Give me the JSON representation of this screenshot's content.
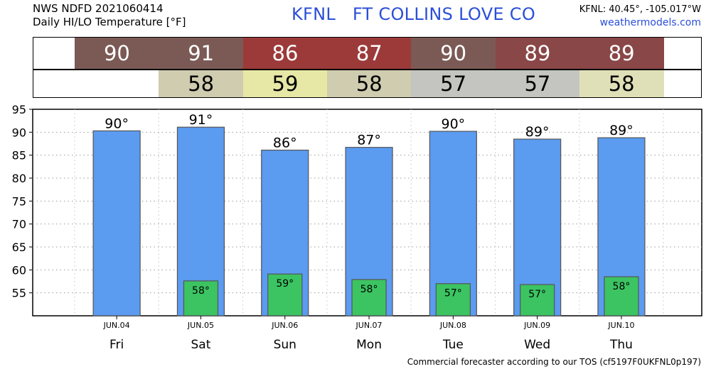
{
  "header": {
    "source_line": "NWS NDFD 2021060414",
    "product_line": "Daily HI/LO Temperature [°F]",
    "station_title": "KFNL   FT COLLINS LOVE CO",
    "coords": "KFNL: 40.45°, -105.017°W",
    "site": "weathermodels.com"
  },
  "strips": {
    "hi": [
      {
        "value": "90",
        "color": "#7b5a55"
      },
      {
        "value": "91",
        "color": "#7b5a55"
      },
      {
        "value": "86",
        "color": "#9c3a3a"
      },
      {
        "value": "87",
        "color": "#9c3a3a"
      },
      {
        "value": "90",
        "color": "#7b5a55"
      },
      {
        "value": "89",
        "color": "#8a4747"
      },
      {
        "value": "89",
        "color": "#8a4747"
      }
    ],
    "lo": [
      {
        "value": "",
        "color": "#ffffff"
      },
      {
        "value": "58",
        "color": "#cfccaf"
      },
      {
        "value": "59",
        "color": "#e7e7a6"
      },
      {
        "value": "58",
        "color": "#cfccaf"
      },
      {
        "value": "57",
        "color": "#c4c4c0"
      },
      {
        "value": "57",
        "color": "#c4c4c0"
      },
      {
        "value": "58",
        "color": "#e0e0b8"
      }
    ]
  },
  "chart_data": {
    "type": "bar",
    "categories": [
      "Fri",
      "Sat",
      "Sun",
      "Mon",
      "Tue",
      "Wed",
      "Thu"
    ],
    "dates": [
      "JUN.04",
      "JUN.05",
      "JUN.06",
      "JUN.07",
      "JUN.08",
      "JUN.09",
      "JUN.10"
    ],
    "series": [
      {
        "name": "HI",
        "values": [
          90.3,
          91.1,
          86.1,
          86.7,
          90.2,
          88.5,
          88.8
        ],
        "labels": [
          "90°",
          "91°",
          "86°",
          "87°",
          "90°",
          "89°",
          "89°"
        ],
        "color": "#5b9bf0"
      },
      {
        "name": "LO",
        "values": [
          null,
          57.6,
          59.1,
          57.9,
          57.0,
          56.8,
          58.5
        ],
        "labels": [
          "",
          "58°",
          "59°",
          "58°",
          "57°",
          "57°",
          "58°"
        ],
        "color": "#3cc462"
      }
    ],
    "ylim": [
      50,
      95
    ],
    "yticks": [
      55,
      60,
      65,
      70,
      75,
      80,
      85,
      90,
      95
    ],
    "grid": true
  },
  "footer": {
    "text": "Commercial forecaster according to our TOS (cf5197F0UKFNL0p197)"
  }
}
